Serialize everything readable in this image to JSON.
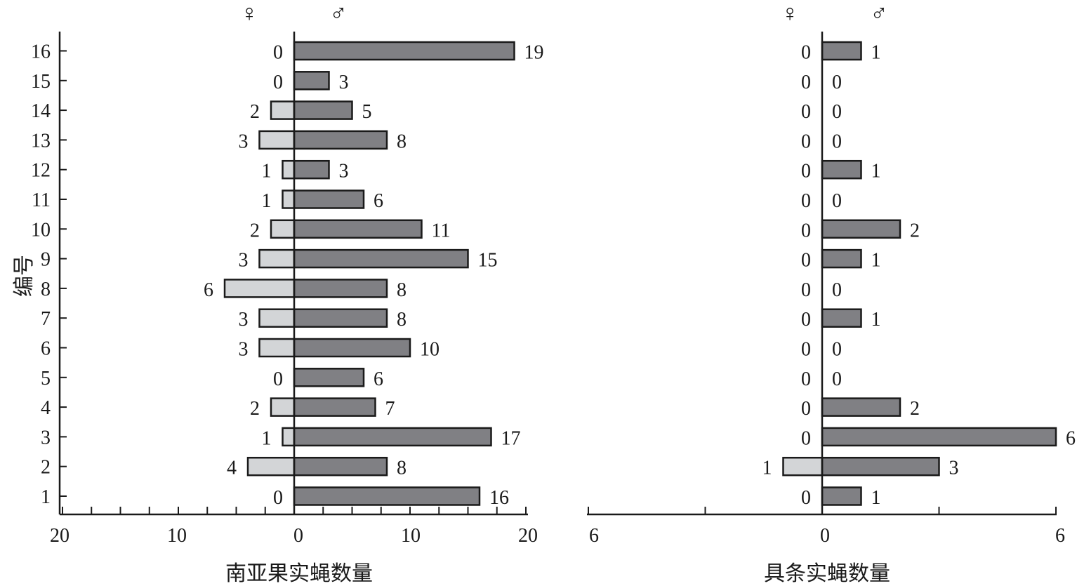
{
  "colors": {
    "male": "#808084",
    "female": "#d3d5d7",
    "stroke": "#1a1a1a"
  },
  "chart_data": [
    {
      "type": "bar",
      "orientation": "horizontal-diverging",
      "xlabel": "南亚果实蝇数量",
      "ylabel": "编号",
      "female_symbol": "♀",
      "male_symbol": "♂",
      "categories": [
        "1",
        "2",
        "3",
        "4",
        "5",
        "6",
        "7",
        "8",
        "9",
        "10",
        "11",
        "12",
        "13",
        "14",
        "15",
        "16"
      ],
      "x_ticks": [
        "20",
        "10",
        "0",
        "10",
        "20"
      ],
      "xlim": [
        -20,
        20
      ],
      "series": [
        {
          "name": "♀",
          "values": [
            0,
            4,
            1,
            2,
            0,
            3,
            3,
            6,
            3,
            2,
            1,
            1,
            3,
            2,
            0,
            0
          ]
        },
        {
          "name": "♂",
          "values": [
            16,
            8,
            17,
            7,
            6,
            10,
            8,
            8,
            15,
            11,
            6,
            3,
            8,
            5,
            3,
            19
          ]
        }
      ]
    },
    {
      "type": "bar",
      "orientation": "horizontal-diverging",
      "xlabel": "具条实蝇数量",
      "female_symbol": "♀",
      "male_symbol": "♂",
      "categories": [
        "1",
        "2",
        "3",
        "4",
        "5",
        "6",
        "7",
        "8",
        "9",
        "10",
        "11",
        "12",
        "13",
        "14",
        "15",
        "16"
      ],
      "x_ticks": [
        "6",
        "0",
        "6"
      ],
      "xlim": [
        -6,
        6
      ],
      "series": [
        {
          "name": "♀",
          "values": [
            0,
            1,
            0,
            0,
            0,
            0,
            0,
            0,
            0,
            0,
            0,
            0,
            0,
            0,
            0,
            0
          ]
        },
        {
          "name": "♂",
          "values": [
            1,
            3,
            6,
            2,
            0,
            0,
            1,
            0,
            1,
            2,
            0,
            1,
            0,
            0,
            0,
            1
          ]
        }
      ]
    }
  ]
}
